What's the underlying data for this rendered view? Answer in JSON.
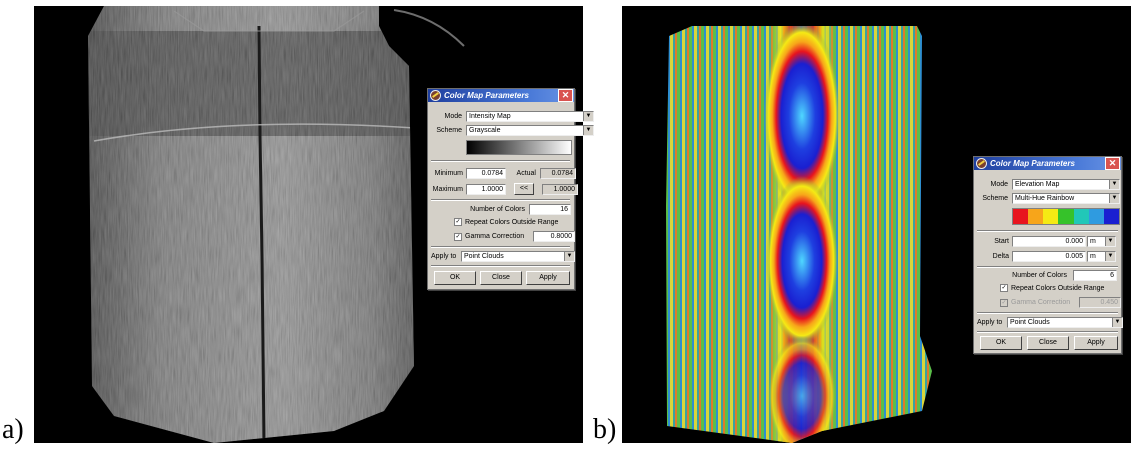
{
  "panel_a": {
    "label": "a)",
    "dialog": {
      "title": "Color Map Parameters",
      "mode_label": "Mode",
      "mode_value": "Intensity Map",
      "scheme_label": "Scheme",
      "scheme_value": "Grayscale",
      "minimum_label": "Minimum",
      "minimum_value": "0.0784",
      "actual_label": "Actual",
      "actual_min": "0.0784",
      "maximum_label": "Maximum",
      "maximum_value": "1.0000",
      "swap_label": "<<",
      "actual_max": "1.0000",
      "num_colors_label": "Number of Colors",
      "num_colors_value": "16",
      "repeat_label": "Repeat Colors Outside Range",
      "gamma_label": "Gamma Correction",
      "gamma_value": "0.8000",
      "apply_to_label": "Apply to",
      "apply_to_value": "Point Clouds",
      "ok": "OK",
      "close": "Close",
      "apply": "Apply"
    }
  },
  "panel_b": {
    "label": "b)",
    "dialog": {
      "title": "Color Map Parameters",
      "mode_label": "Mode",
      "mode_value": "Elevation Map",
      "scheme_label": "Scheme",
      "scheme_value": "Multi-Hue Rainbow",
      "rainbow_colors": [
        "#e8141e",
        "#f7a51a",
        "#f5ea14",
        "#36c22a",
        "#21c7b8",
        "#2f9be0",
        "#1a1fd1"
      ],
      "start_label": "Start",
      "start_value": "0.000",
      "start_unit": "m",
      "delta_label": "Delta",
      "delta_value": "0.005",
      "delta_unit": "m",
      "num_colors_label": "Number of Colors",
      "num_colors_value": "6",
      "repeat_label": "Repeat Colors Outside Range",
      "gamma_label": "Gamma Correction",
      "gamma_value": "0.450",
      "apply_to_label": "Apply to",
      "apply_to_value": "Point Clouds",
      "ok": "OK",
      "close": "Close",
      "apply": "Apply"
    }
  }
}
